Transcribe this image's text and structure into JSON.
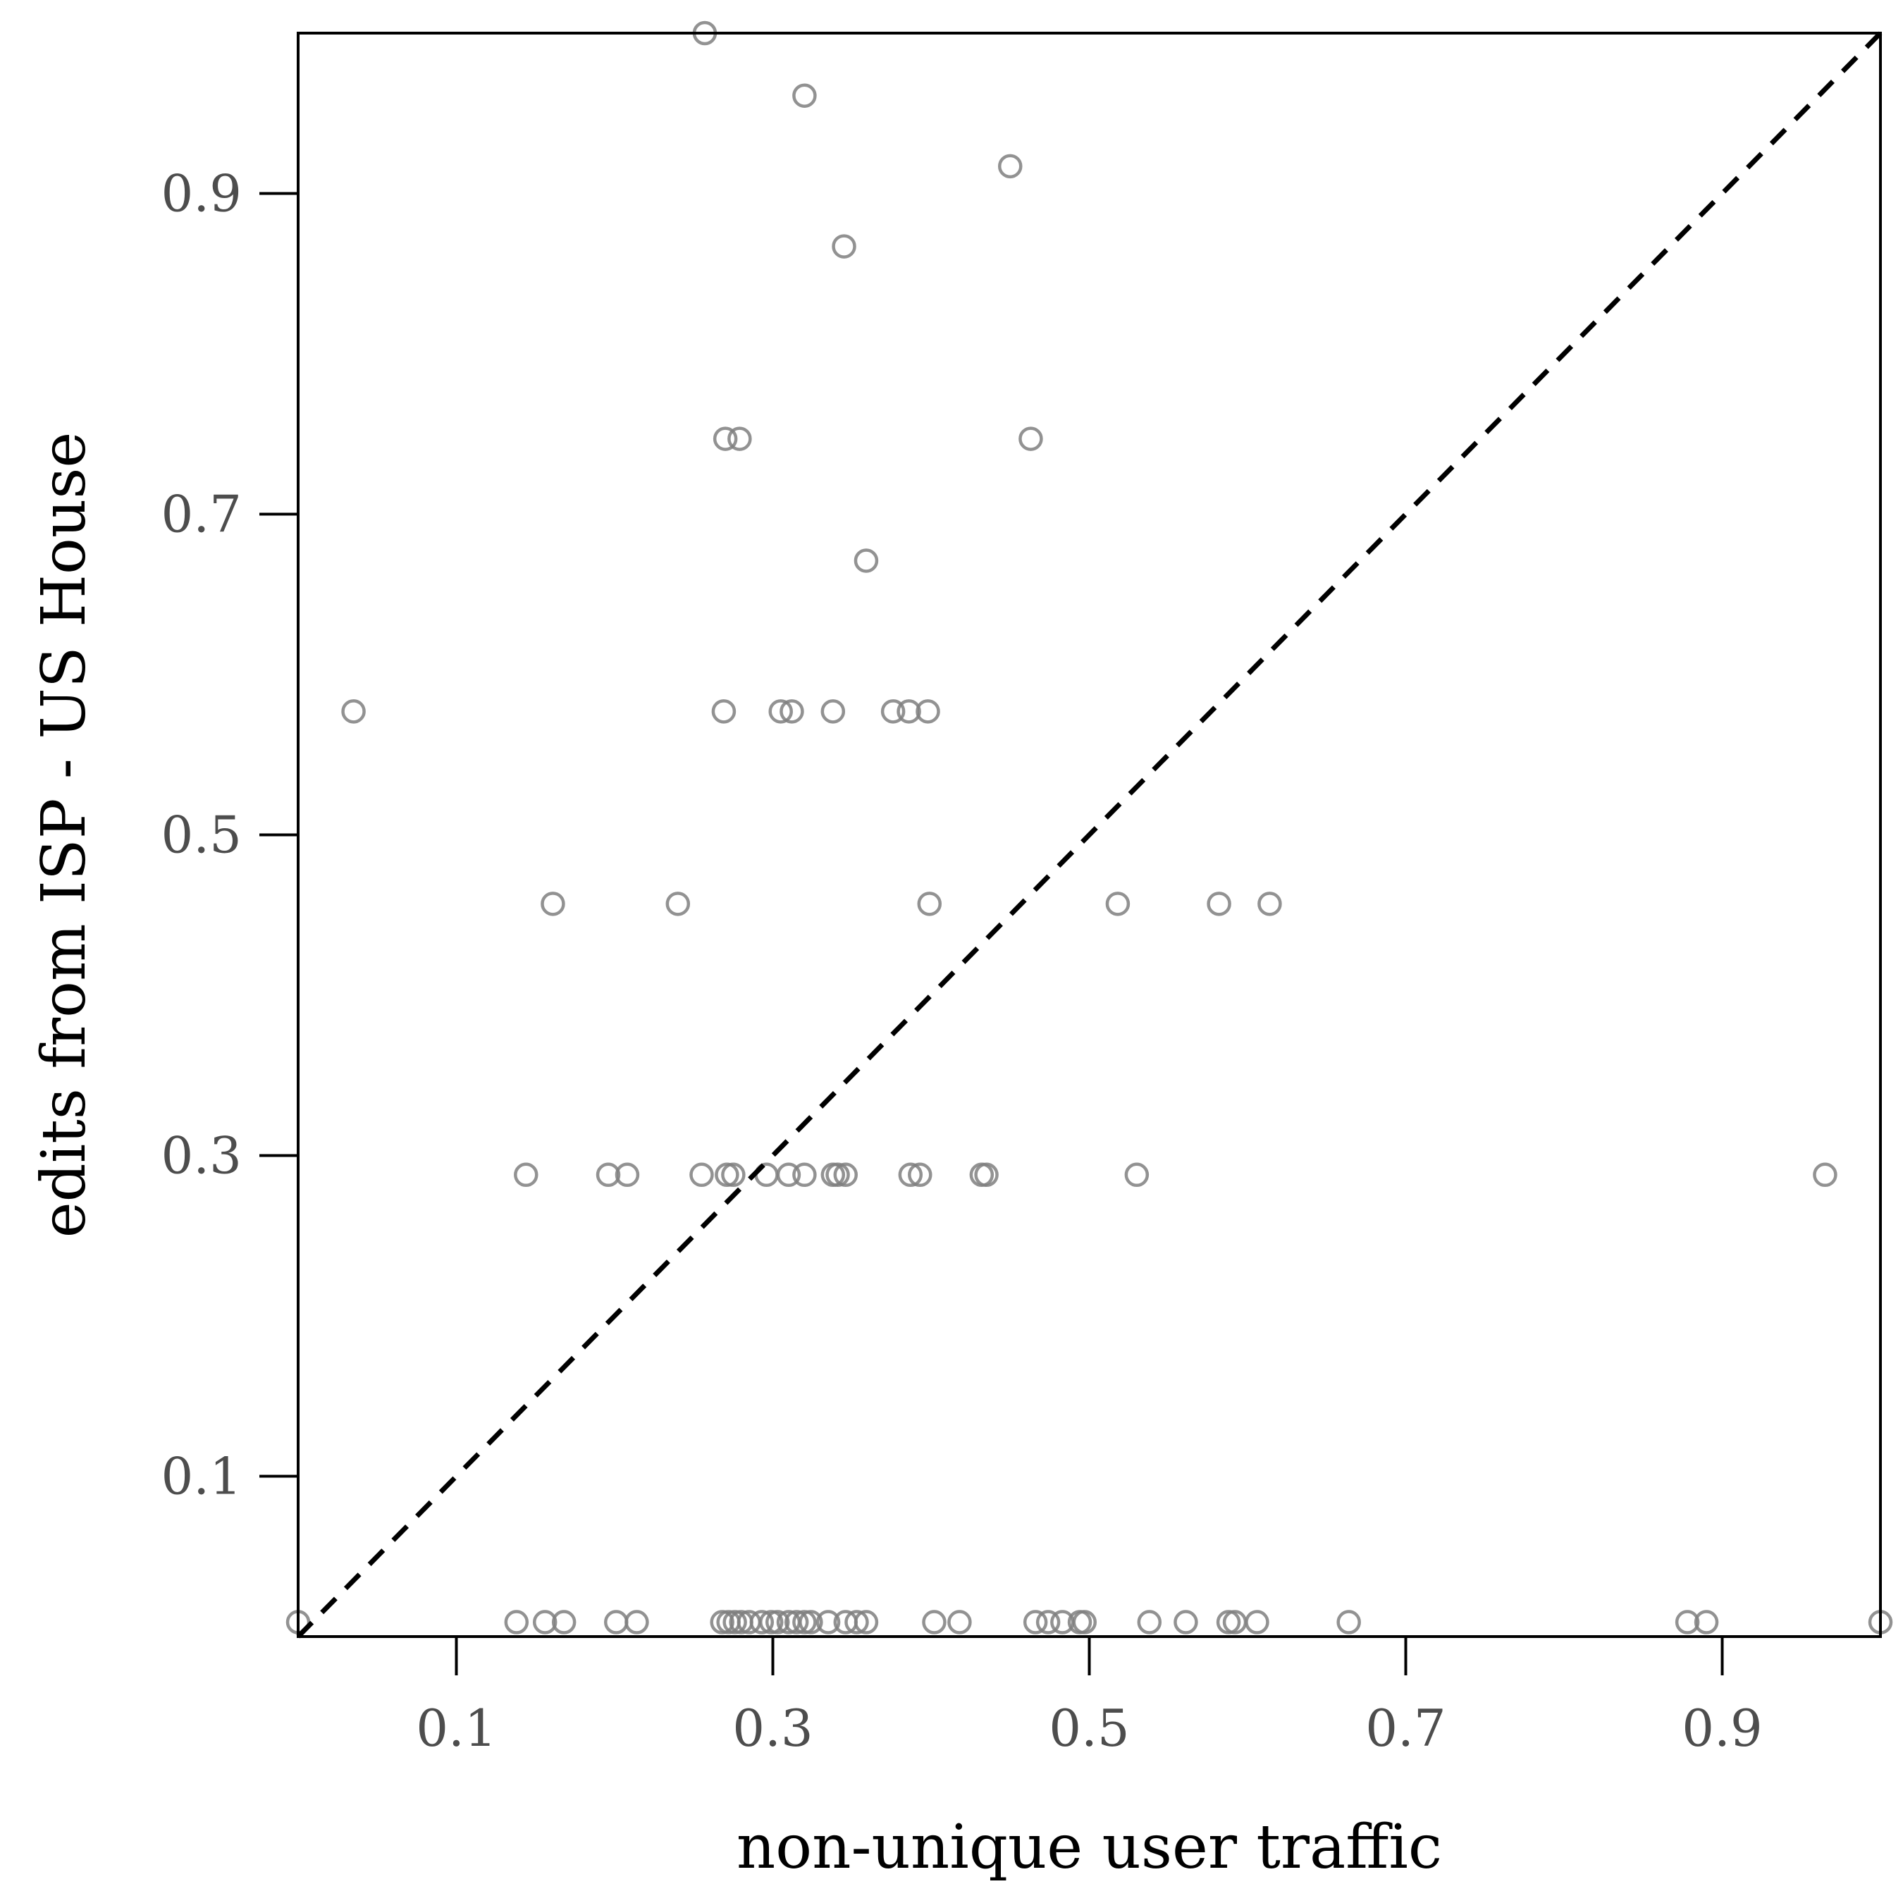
{
  "chart_data": {
    "type": "scatter",
    "title": "",
    "xlabel": "non-unique user traffic",
    "ylabel": "edits from ISP - US House",
    "xlim": [
      0,
      1
    ],
    "ylim": [
      0,
      1
    ],
    "xticks": [
      0.1,
      0.3,
      0.5,
      0.7,
      0.9
    ],
    "yticks": [
      0.1,
      0.3,
      0.5,
      0.7,
      0.9
    ],
    "xtick_labels": [
      "0.1",
      "0.3",
      "0.5",
      "0.7",
      "0.9"
    ],
    "ytick_labels": [
      "0.1",
      "0.3",
      "0.5",
      "0.7",
      "0.9"
    ],
    "grid": false,
    "marker_color": "#7f7f7f",
    "reference_line": {
      "style": "dashed",
      "color": "#000000",
      "from": [
        0,
        0
      ],
      "to": [
        1,
        1
      ]
    },
    "points": [
      [
        0.257,
        1.0
      ],
      [
        0.32,
        0.961
      ],
      [
        0.45,
        0.917
      ],
      [
        0.345,
        0.867
      ],
      [
        0.27,
        0.747
      ],
      [
        0.279,
        0.747
      ],
      [
        0.463,
        0.747
      ],
      [
        0.359,
        0.671
      ],
      [
        0.035,
        0.577
      ],
      [
        0.269,
        0.577
      ],
      [
        0.305,
        0.577
      ],
      [
        0.312,
        0.577
      ],
      [
        0.338,
        0.577
      ],
      [
        0.376,
        0.577
      ],
      [
        0.386,
        0.577
      ],
      [
        0.398,
        0.577
      ],
      [
        0.161,
        0.457
      ],
      [
        0.24,
        0.457
      ],
      [
        0.399,
        0.457
      ],
      [
        0.518,
        0.457
      ],
      [
        0.582,
        0.457
      ],
      [
        0.614,
        0.457
      ],
      [
        0.144,
        0.288
      ],
      [
        0.196,
        0.288
      ],
      [
        0.208,
        0.288
      ],
      [
        0.255,
        0.288
      ],
      [
        0.271,
        0.288
      ],
      [
        0.275,
        0.288
      ],
      [
        0.296,
        0.288
      ],
      [
        0.31,
        0.288
      ],
      [
        0.32,
        0.288
      ],
      [
        0.338,
        0.288
      ],
      [
        0.341,
        0.288
      ],
      [
        0.346,
        0.288
      ],
      [
        0.387,
        0.288
      ],
      [
        0.393,
        0.288
      ],
      [
        0.432,
        0.288
      ],
      [
        0.435,
        0.288
      ],
      [
        0.53,
        0.288
      ],
      [
        0.965,
        0.288
      ],
      [
        0.0,
        0.009
      ],
      [
        0.138,
        0.009
      ],
      [
        0.156,
        0.009
      ],
      [
        0.168,
        0.009
      ],
      [
        0.201,
        0.009
      ],
      [
        0.214,
        0.009
      ],
      [
        0.268,
        0.009
      ],
      [
        0.272,
        0.009
      ],
      [
        0.276,
        0.009
      ],
      [
        0.28,
        0.009
      ],
      [
        0.285,
        0.009
      ],
      [
        0.293,
        0.009
      ],
      [
        0.299,
        0.009
      ],
      [
        0.303,
        0.009
      ],
      [
        0.31,
        0.009
      ],
      [
        0.315,
        0.009
      ],
      [
        0.32,
        0.009
      ],
      [
        0.324,
        0.009
      ],
      [
        0.335,
        0.009
      ],
      [
        0.346,
        0.009
      ],
      [
        0.353,
        0.009
      ],
      [
        0.359,
        0.009
      ],
      [
        0.402,
        0.009
      ],
      [
        0.418,
        0.009
      ],
      [
        0.466,
        0.009
      ],
      [
        0.474,
        0.009
      ],
      [
        0.483,
        0.009
      ],
      [
        0.494,
        0.009
      ],
      [
        0.497,
        0.009
      ],
      [
        0.538,
        0.009
      ],
      [
        0.561,
        0.009
      ],
      [
        0.588,
        0.009
      ],
      [
        0.592,
        0.009
      ],
      [
        0.606,
        0.009
      ],
      [
        0.664,
        0.009
      ],
      [
        0.878,
        0.009
      ],
      [
        0.89,
        0.009
      ],
      [
        1.0,
        0.009
      ]
    ]
  }
}
